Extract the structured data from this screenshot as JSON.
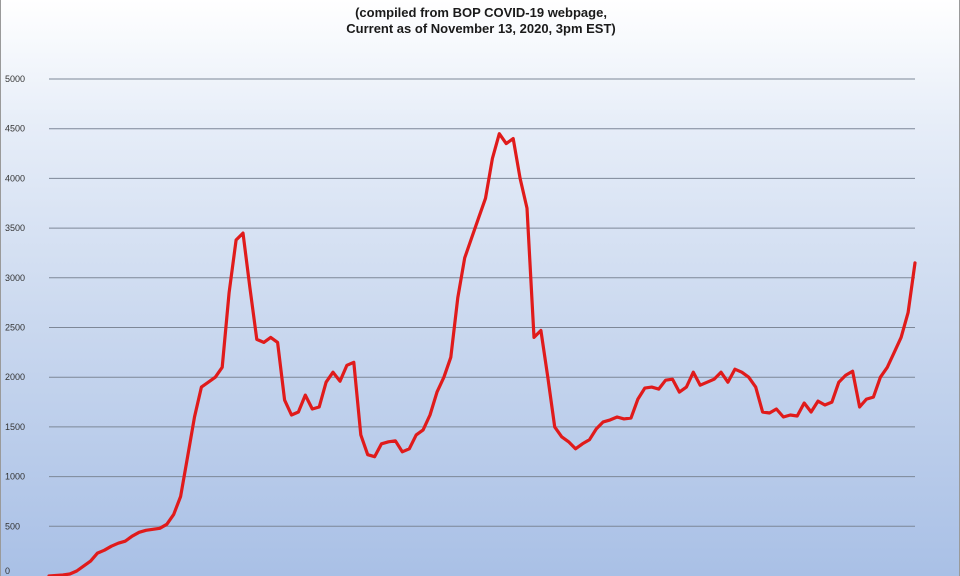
{
  "chart_data": {
    "type": "line",
    "title_line1": "(compiled from BOP COVID-19 webpage,",
    "title_line2": "Current as of November 13, 2020, 3pm EST)",
    "ylim": [
      0,
      5000
    ],
    "yticks": [
      0,
      500,
      1000,
      1500,
      2000,
      2500,
      3000,
      3500,
      4000,
      4500,
      5000
    ],
    "grid": true,
    "legend": "none",
    "series_color": "#e01b1b",
    "series": [
      {
        "values": [
          0,
          5,
          10,
          20,
          50,
          100,
          150,
          230,
          260,
          300,
          330,
          350,
          400,
          440,
          460,
          470,
          480,
          520,
          620,
          800,
          1200,
          1600,
          1900,
          1950,
          2000,
          2100,
          2850,
          3380,
          3450,
          2900,
          2380,
          2350,
          2400,
          2350,
          1770,
          1620,
          1650,
          1820,
          1680,
          1700,
          1950,
          2050,
          1960,
          2120,
          2150,
          1420,
          1220,
          1200,
          1330,
          1350,
          1360,
          1250,
          1280,
          1420,
          1470,
          1620,
          1850,
          2000,
          2200,
          2800,
          3200,
          3400,
          3600,
          3800,
          4200,
          4450,
          4350,
          4400,
          4000,
          3700,
          2400,
          2470,
          2000,
          1500,
          1400,
          1350,
          1280,
          1330,
          1370,
          1480,
          1550,
          1570,
          1600,
          1580,
          1590,
          1780,
          1890,
          1900,
          1880,
          1970,
          1980,
          1850,
          1900,
          2050,
          1920,
          1950,
          1980,
          2050,
          1950,
          2080,
          2050,
          2000,
          1900,
          1650,
          1640,
          1680,
          1600,
          1620,
          1610,
          1740,
          1650,
          1760,
          1720,
          1750,
          1950,
          2020,
          2060,
          1700,
          1780,
          1800,
          2000,
          2100,
          2250,
          2400,
          2650,
          3150
        ]
      }
    ]
  }
}
